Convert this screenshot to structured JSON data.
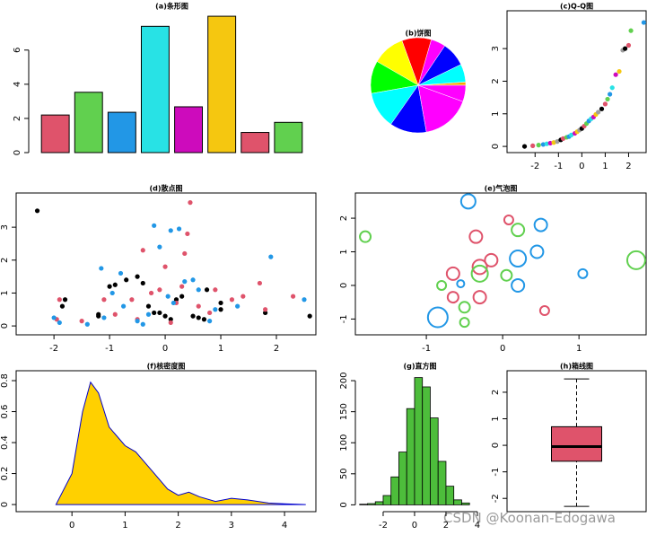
{
  "chart_data": [
    {
      "type": "bar",
      "title": "(a)条形图",
      "values": [
        2.2,
        3.53,
        2.36,
        7.39,
        2.68,
        7.98,
        1.18,
        1.77
      ],
      "colors": [
        "#DF536B",
        "#61D04F",
        "#2297E6",
        "#28E2E5",
        "#CD0BBC",
        "#F5C710",
        "#DF536B",
        "#61D04F"
      ],
      "ylim": [
        0,
        8.3
      ],
      "yticks": [
        0,
        2,
        4,
        6
      ]
    },
    {
      "type": "pie",
      "title": "(b)饼图",
      "values": [
        4,
        22,
        30,
        18,
        36,
        40,
        40,
        45,
        45,
        60,
        20
      ],
      "colors": [
        "#FFA500",
        "#00FFFF",
        "#0000FF",
        "#FF00FF",
        "#FF0000",
        "#FFFF00",
        "#00FF00",
        "#00FFFF",
        "#0000FF",
        "#FF00FF",
        "#FF00FF"
      ]
    },
    {
      "type": "scatter",
      "title": "(c)Q-Q图",
      "box": true,
      "palette": [
        "#000000",
        "#DF536B",
        "#61D04F",
        "#2297E6",
        "#28E2E5",
        "#CD0BBC",
        "#F5C710",
        "#9E9E9E"
      ],
      "series": [
        {
          "x": [
            -2.45,
            -2.1,
            -1.85,
            -1.65,
            -1.5,
            -1.35,
            -1.2,
            -1.05,
            -0.9,
            -0.8,
            -0.65,
            -0.55,
            -0.45,
            -0.3,
            -0.2,
            -0.1,
            0.0,
            0.1,
            0.2,
            0.3,
            0.4,
            0.5,
            0.6,
            0.7,
            0.85,
            1.0,
            1.1,
            1.2,
            1.3,
            1.45,
            1.6,
            1.75,
            1.85,
            2.0,
            2.1,
            2.65
          ],
          "values": [
            0.0,
            0.02,
            0.04,
            0.06,
            0.08,
            0.1,
            0.12,
            0.15,
            0.2,
            0.24,
            0.28,
            0.3,
            0.35,
            0.4,
            0.45,
            0.5,
            0.55,
            0.62,
            0.7,
            0.78,
            0.85,
            0.9,
            0.98,
            1.05,
            1.15,
            1.3,
            1.45,
            1.6,
            1.8,
            2.2,
            2.3,
            2.95,
            3.0,
            3.1,
            3.55,
            3.8
          ]
        }
      ],
      "xlim": [
        -3.2,
        2.75
      ],
      "ylim": [
        -0.19,
        4.16
      ],
      "xticks": [
        -2,
        -1,
        0,
        1,
        2
      ],
      "yticks": [
        0,
        1,
        2,
        3
      ]
    },
    {
      "type": "scatter",
      "title": "(d)散点图",
      "box": true,
      "series": [
        {
          "color": "#000000",
          "x": [
            -2.3,
            -1.8,
            -1.85,
            -1.2,
            -1.0,
            -0.9,
            -0.7,
            -0.5,
            -0.4,
            -0.3,
            -0.2,
            -0.1,
            0,
            0.1,
            0.2,
            0.3,
            0.5,
            0.6,
            0.7,
            0.75,
            1.0,
            1.0,
            -1.2,
            1.8,
            2.6
          ],
          "values": [
            3.5,
            0.8,
            0.6,
            0.3,
            1.2,
            1.25,
            1.4,
            1.5,
            1.3,
            0.6,
            0.4,
            0.4,
            0.3,
            0.2,
            0.8,
            0.9,
            0.3,
            0.25,
            0.2,
            1.1,
            0.7,
            0.5,
            0.35,
            0.4,
            0.3
          ]
        },
        {
          "color": "#DF536B",
          "x": [
            -1.9,
            -1.95,
            -1.5,
            -1.1,
            -0.9,
            -0.6,
            -0.5,
            -0.4,
            -0.25,
            -0.1,
            0,
            0.1,
            0.2,
            0.3,
            0.35,
            0.45,
            0.6,
            0.8,
            0.9,
            1.2,
            1.4,
            1.7,
            1.8,
            2.3,
            0.4
          ],
          "values": [
            0.8,
            0.2,
            0.15,
            0.8,
            0.35,
            0.8,
            0.2,
            2.3,
            1.0,
            1.1,
            1.8,
            0.1,
            0.7,
            1.2,
            2.2,
            3.75,
            0.6,
            0.4,
            1.1,
            0.8,
            0.9,
            1.3,
            0.5,
            0.9,
            2.8
          ]
        },
        {
          "color": "#2297E6",
          "x": [
            -2.0,
            -1.9,
            -1.4,
            -1.15,
            -1.1,
            -0.95,
            -0.8,
            -0.75,
            -0.5,
            -0.4,
            -0.2,
            -0.1,
            0.05,
            0.1,
            0.15,
            0.25,
            0.35,
            0.5,
            0.6,
            0.8,
            0.9,
            1.3,
            1.9,
            2.5,
            -0.3
          ],
          "values": [
            0.25,
            0.1,
            0.05,
            1.75,
            0.25,
            1.0,
            1.6,
            0.6,
            0.15,
            0.05,
            3.05,
            2.4,
            0.9,
            2.9,
            0.7,
            2.95,
            1.35,
            1.4,
            1.1,
            0.15,
            0.5,
            0.6,
            2.1,
            0.8,
            0.35
          ]
        }
      ],
      "xlim": [
        -2.68,
        2.71
      ],
      "ylim": [
        -0.27,
        4.04
      ],
      "xticks": [
        -2,
        -1,
        0,
        1,
        2
      ],
      "yticks": [
        0,
        1,
        2,
        3
      ]
    },
    {
      "type": "bubble",
      "title": "(e)气泡图",
      "box": true,
      "series": [
        {
          "color": "#2297E6",
          "x": [
            -0.45,
            -0.85,
            0.5,
            0.45,
            0.2,
            0.2,
            1.05,
            -0.55
          ],
          "values": [
            2.5,
            -0.95,
            1.8,
            1.0,
            0.8,
            0.0,
            0.35,
            0.05
          ],
          "sizes": [
            8,
            11,
            7,
            7,
            9,
            7,
            5,
            4
          ]
        },
        {
          "color": "#DF536B",
          "x": [
            0.08,
            -0.35,
            -0.65,
            -0.65,
            -0.3,
            -0.15,
            0.55,
            -0.3
          ],
          "values": [
            1.95,
            1.45,
            0.35,
            -0.35,
            -0.35,
            0.75,
            -0.75,
            0.55
          ],
          "sizes": [
            5,
            7,
            7,
            6,
            7,
            7,
            5,
            8
          ]
        },
        {
          "color": "#61D04F",
          "x": [
            -1.8,
            0.2,
            -0.3,
            -0.8,
            -0.5,
            -0.5,
            0.05,
            1.75
          ],
          "values": [
            1.45,
            1.65,
            0.35,
            0.0,
            -0.65,
            -1.1,
            0.3,
            0.75
          ],
          "sizes": [
            6,
            7,
            9,
            5,
            6,
            5,
            6,
            10
          ]
        }
      ],
      "xlim": [
        -1.93,
        1.88
      ],
      "ylim": [
        -1.47,
        2.75
      ],
      "xticks": [
        -1,
        0,
        1
      ],
      "yticks": [
        -1,
        0,
        1,
        2
      ]
    },
    {
      "type": "area",
      "title": "(f)核密度图",
      "box": true,
      "color": "#FFD000",
      "line_color": "#0000CD",
      "x": [
        -0.3,
        0.0,
        0.2,
        0.35,
        0.5,
        0.7,
        1.0,
        1.2,
        1.5,
        1.8,
        2.0,
        2.2,
        2.4,
        2.7,
        3.0,
        3.3,
        3.7,
        4.0,
        4.4
      ],
      "values": [
        0,
        0.2,
        0.6,
        0.79,
        0.72,
        0.5,
        0.38,
        0.34,
        0.22,
        0.1,
        0.06,
        0.08,
        0.05,
        0.02,
        0.04,
        0.03,
        0.01,
        0.005,
        0
      ],
      "xlim": [
        -1.05,
        4.59
      ],
      "ylim": [
        -0.046,
        0.864
      ],
      "xticks": [
        0,
        1,
        2,
        3,
        4
      ],
      "yticks": [
        0,
        0.2,
        0.4,
        0.6,
        0.8
      ]
    },
    {
      "type": "histogram",
      "title": "(g)直方图",
      "color": "#4DBD3B",
      "bins": [
        -3.5,
        -3,
        -2.5,
        -2,
        -1.5,
        -1,
        -0.5,
        0,
        0.5,
        1,
        1.5,
        2,
        2.5,
        3,
        3.5
      ],
      "values": [
        1,
        2,
        5,
        15,
        45,
        85,
        155,
        205,
        190,
        140,
        70,
        30,
        8,
        3
      ],
      "xlim": [
        -3.77,
        4.46
      ],
      "ylim": [
        -11,
        216
      ],
      "xticks": [
        -2,
        0,
        2,
        4
      ],
      "yticks": [
        0,
        50,
        100,
        150,
        200
      ]
    },
    {
      "type": "box",
      "title": "(h)箱线图",
      "box": true,
      "color": "#DF536B",
      "min": -2.3,
      "q1": -0.6,
      "median": -0.05,
      "q3": 0.7,
      "max": 2.5,
      "ylim": [
        -2.5,
        2.81
      ],
      "yticks": [
        -2,
        -1,
        0,
        1,
        2
      ]
    }
  ],
  "watermark": "CSDN @Koonan-Edogawa"
}
